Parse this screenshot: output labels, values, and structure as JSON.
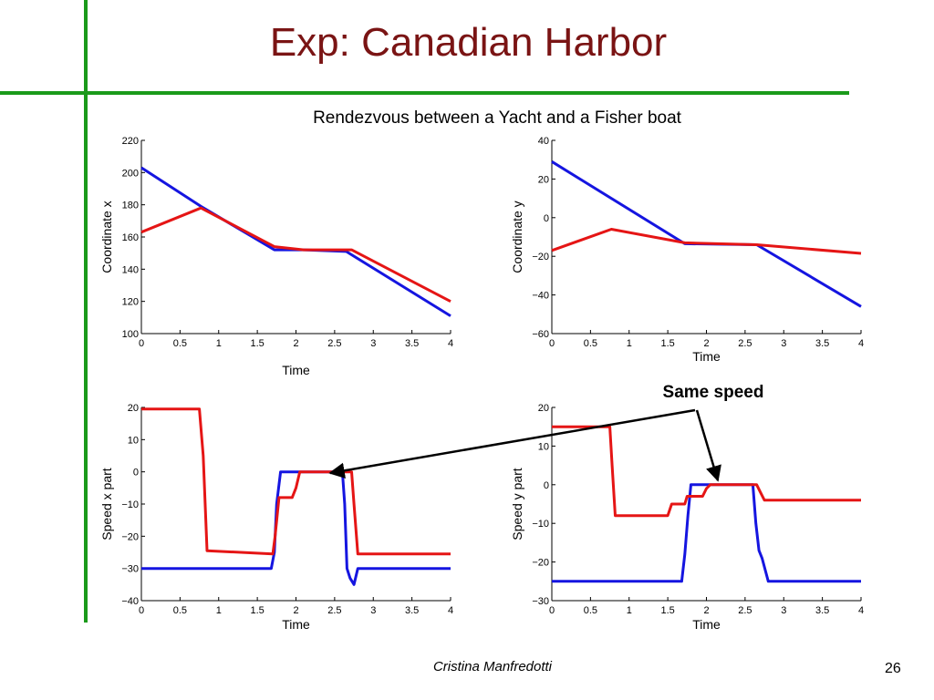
{
  "slide": {
    "title": "Exp: Canadian Harbor",
    "author": "Cristina Manfredotti",
    "page_number": "26"
  },
  "figure": {
    "title": "Rendezvous between a Yacht and a Fisher boat",
    "annotation": "Same speed"
  },
  "colors": {
    "series_blue": "#1515e0",
    "series_red": "#e51515",
    "accent_green": "#1a9a1a",
    "title": "#7a1414"
  },
  "chart_data": [
    {
      "type": "line",
      "xlabel": "Time",
      "ylabel": "Coordinate x",
      "xlim": [
        0,
        4
      ],
      "ylim": [
        100,
        220
      ],
      "xticks": [
        0,
        0.5,
        1,
        1.5,
        2,
        2.5,
        3,
        3.5,
        4
      ],
      "xtick_labels": [
        "0",
        "0.5",
        "1",
        "1.5",
        "2",
        "2.5",
        "3",
        "3.5",
        "4"
      ],
      "yticks": [
        100,
        120,
        140,
        160,
        180,
        200,
        220
      ],
      "ytick_labels": [
        "100",
        "120",
        "140",
        "160",
        "180",
        "200",
        "220"
      ],
      "series": [
        {
          "color": "blue",
          "x": [
            0,
            0.77,
            1.72,
            2.1,
            2.65,
            4.0
          ],
          "y": [
            203,
            179,
            152,
            152,
            151,
            111
          ]
        },
        {
          "color": "red",
          "x": [
            0,
            0.77,
            1.72,
            2.1,
            2.72,
            4.0
          ],
          "y": [
            163,
            178,
            154,
            152,
            152,
            120
          ]
        }
      ]
    },
    {
      "type": "line",
      "xlabel": "Time",
      "ylabel": "Coordinate y",
      "xlim": [
        0,
        4
      ],
      "ylim": [
        -60,
        40
      ],
      "xticks": [
        0,
        0.5,
        1,
        1.5,
        2,
        2.5,
        3,
        3.5,
        4
      ],
      "xtick_labels": [
        "0",
        "0.5",
        "1",
        "1.5",
        "2",
        "2.5",
        "3",
        "3.5",
        "4"
      ],
      "yticks": [
        -60,
        -40,
        -20,
        0,
        20,
        40
      ],
      "ytick_labels": [
        "−60",
        "−40",
        "−20",
        "0",
        "20",
        "40"
      ],
      "series": [
        {
          "color": "blue",
          "x": [
            0,
            1.72,
            2.65,
            4.0
          ],
          "y": [
            29,
            -13.5,
            -14,
            -46
          ]
        },
        {
          "color": "red",
          "x": [
            0,
            0.77,
            1.72,
            2.65,
            4.0
          ],
          "y": [
            -17,
            -6,
            -13,
            -14,
            -18.5
          ]
        }
      ]
    },
    {
      "type": "line",
      "xlabel": "Time",
      "ylabel": "Speed x part",
      "xlim": [
        0,
        4
      ],
      "ylim": [
        -40,
        20
      ],
      "xticks": [
        0,
        0.5,
        1,
        1.5,
        2,
        2.5,
        3,
        3.5,
        4
      ],
      "xtick_labels": [
        "0",
        "0.5",
        "1",
        "1.5",
        "2",
        "2.5",
        "3",
        "3.5",
        "4"
      ],
      "yticks": [
        -40,
        -30,
        -20,
        -10,
        0,
        10,
        20
      ],
      "ytick_labels": [
        "−40",
        "−30",
        "−20",
        "−10",
        "0",
        "10",
        "20"
      ],
      "series": [
        {
          "color": "blue",
          "x": [
            0,
            1.68,
            1.72,
            1.75,
            1.8,
            2.6,
            2.63,
            2.66,
            2.7,
            2.75,
            2.8,
            4.0
          ],
          "y": [
            -30,
            -30,
            -25,
            -10,
            0,
            0,
            -10,
            -30,
            -33,
            -35,
            -30,
            -30
          ]
        },
        {
          "color": "red",
          "x": [
            0,
            0.75,
            0.8,
            0.85,
            1.7,
            1.73,
            1.78,
            1.95,
            2.0,
            2.05,
            2.72,
            2.75,
            2.8,
            4.0
          ],
          "y": [
            19.5,
            19.5,
            5,
            -24.5,
            -25.5,
            -20,
            -8,
            -8,
            -5,
            0,
            0,
            -10,
            -25.5,
            -25.5
          ]
        }
      ]
    },
    {
      "type": "line",
      "xlabel": "Time",
      "ylabel": "Speed y part",
      "xlim": [
        0,
        4
      ],
      "ylim": [
        -30,
        20
      ],
      "xticks": [
        0,
        0.5,
        1,
        1.5,
        2,
        2.5,
        3,
        3.5,
        4
      ],
      "xtick_labels": [
        "0",
        "0.5",
        "1",
        "1.5",
        "2",
        "2.5",
        "3",
        "3.5",
        "4"
      ],
      "yticks": [
        -30,
        -20,
        -10,
        0,
        10,
        20
      ],
      "ytick_labels": [
        "−30",
        "−20",
        "−10",
        "0",
        "10",
        "20"
      ],
      "series": [
        {
          "color": "blue",
          "x": [
            0,
            1.68,
            1.72,
            1.76,
            1.8,
            2.6,
            2.64,
            2.68,
            2.72,
            2.76,
            2.8,
            4.0
          ],
          "y": [
            -25,
            -25,
            -18,
            -8,
            0,
            0,
            -10,
            -17,
            -19,
            -22,
            -25,
            -25
          ]
        },
        {
          "color": "red",
          "x": [
            0,
            0.75,
            0.78,
            0.82,
            1.5,
            1.55,
            1.65,
            1.72,
            1.75,
            1.8,
            1.95,
            2.0,
            2.05,
            2.65,
            2.7,
            2.75,
            4.0
          ],
          "y": [
            15,
            15,
            5,
            -8,
            -8,
            -5,
            -5,
            -5,
            -3,
            -3,
            -3,
            -1,
            0,
            0,
            -2,
            -4,
            -4
          ]
        }
      ]
    }
  ]
}
